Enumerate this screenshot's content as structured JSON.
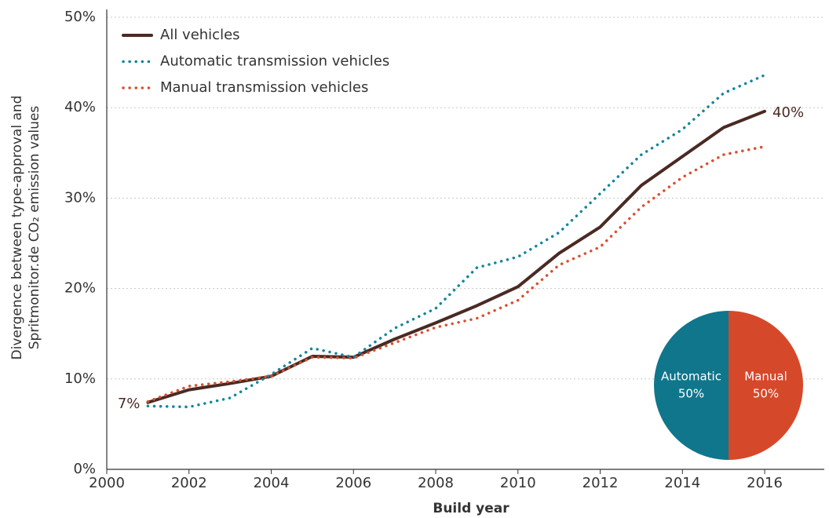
{
  "chart_data": [
    {
      "type": "line",
      "xlabel": "Build year",
      "ylabel": [
        "Divergence between type-approval and",
        "Spritmonitor.de CO₂ emission values"
      ],
      "x": [
        2001,
        2002,
        2003,
        2004,
        2005,
        2006,
        2007,
        2008,
        2009,
        2010,
        2011,
        2012,
        2013,
        2014,
        2015,
        2016
      ],
      "series": [
        {
          "name": "All vehicles",
          "color": "#4a2a23",
          "style": "solid",
          "values": [
            7.4,
            8.8,
            9.5,
            10.3,
            12.5,
            12.4,
            14.4,
            16.2,
            18.1,
            20.2,
            23.9,
            26.8,
            31.4,
            34.6,
            37.8,
            39.6
          ],
          "value_labels": [
            "7%",
            null,
            null,
            null,
            null,
            null,
            null,
            null,
            null,
            null,
            null,
            null,
            null,
            null,
            null,
            "40%"
          ]
        },
        {
          "name": "Automatic transmission vehicles",
          "color": "#13869c",
          "style": "dotted",
          "values": [
            7.0,
            6.9,
            7.9,
            10.5,
            13.4,
            12.4,
            15.6,
            17.8,
            22.3,
            23.5,
            26.2,
            30.5,
            34.8,
            37.6,
            41.6,
            43.6
          ]
        },
        {
          "name": "Manual transmission vehicles",
          "color": "#d9502f",
          "style": "dotted",
          "values": [
            7.5,
            9.2,
            9.7,
            10.3,
            12.4,
            12.3,
            14.0,
            15.7,
            16.7,
            18.7,
            22.6,
            24.6,
            29.0,
            32.3,
            34.8,
            35.7
          ]
        }
      ],
      "xlim": [
        2000,
        2017.45
      ],
      "xticks": [
        2000,
        2002,
        2004,
        2006,
        2008,
        2010,
        2012,
        2014,
        2016
      ],
      "ylim": [
        0,
        50
      ],
      "yticks": [
        {
          "value": 0,
          "label": "0%"
        },
        {
          "value": 10,
          "label": "10%"
        },
        {
          "value": 20,
          "label": "20%"
        },
        {
          "value": 30,
          "label": "30%"
        },
        {
          "value": 40,
          "label": "40%"
        },
        {
          "value": 50,
          "label": "50%"
        }
      ],
      "grid": true,
      "legend": "upper left"
    },
    {
      "type": "pie",
      "categories": [
        "Automatic",
        "Manual"
      ],
      "values": [
        50,
        50
      ],
      "value_labels": [
        "50%",
        "50%"
      ],
      "colors": [
        "#0f768c",
        "#d6482a"
      ]
    }
  ]
}
